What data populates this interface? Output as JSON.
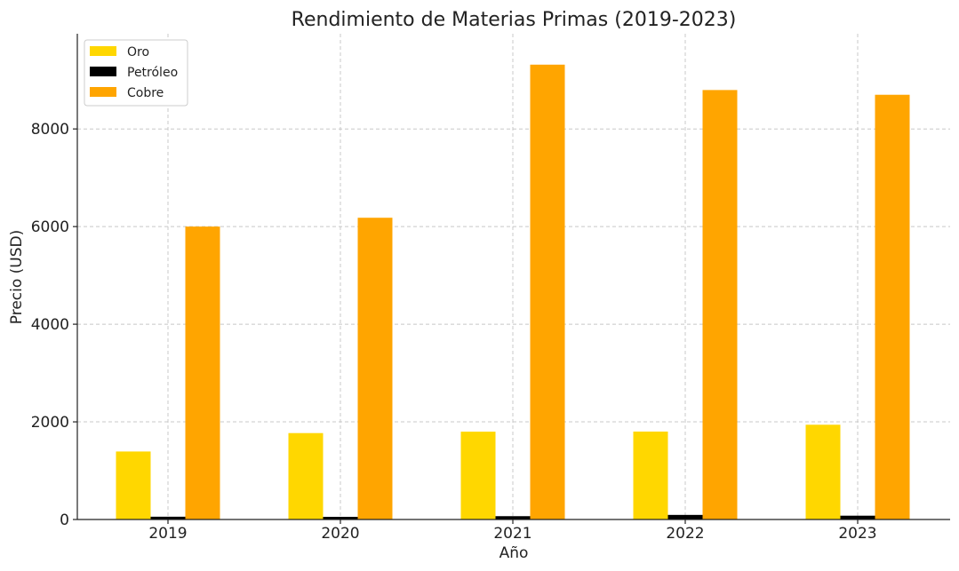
{
  "chart_data": {
    "type": "bar",
    "title": "Rendimiento de Materias Primas (2019-2023)",
    "xlabel": "Año",
    "ylabel": "Precio (USD)",
    "categories": [
      "2019",
      "2020",
      "2021",
      "2022",
      "2023"
    ],
    "series": [
      {
        "name": "Oro",
        "color": "#FFD700",
        "values": [
          1393,
          1770,
          1799,
          1801,
          1941
        ]
      },
      {
        "name": "Petróleo",
        "color": "#000000",
        "values": [
          57,
          39,
          68,
          94,
          78
        ]
      },
      {
        "name": "Cobre",
        "color": "#FFA500",
        "values": [
          6000,
          6181,
          9317,
          8797,
          8700
        ]
      }
    ],
    "ylim": [
      0,
      9950
    ],
    "yticks": [
      0,
      2000,
      4000,
      6000,
      8000
    ],
    "grid": true,
    "legend_position": "top-left"
  }
}
